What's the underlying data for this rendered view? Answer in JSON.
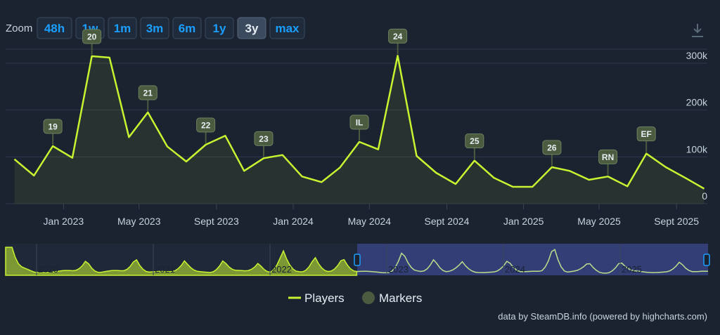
{
  "toolbar": {
    "zoom_label": "Zoom",
    "zoom_buttons": [
      "48h",
      "1w",
      "1m",
      "3m",
      "6m",
      "1y",
      "3y",
      "max"
    ],
    "selected": "3y",
    "download_icon": "download-icon"
  },
  "colors": {
    "background": "#1b2230",
    "players_line": "#c6f431",
    "marker_fill": "#4a5b3f",
    "button_text": "#1a9fff",
    "navigator_selection": "#3b468c"
  },
  "chart_data": {
    "type": "line",
    "series": [
      {
        "name": "Players",
        "x": [
          "2022-10-15",
          "2022-11-15",
          "2022-12-15",
          "2023-01-15",
          "2023-02-15",
          "2023-03-15",
          "2023-04-15",
          "2023-05-15",
          "2023-06-15",
          "2023-07-15",
          "2023-08-15",
          "2023-09-15",
          "2023-10-15",
          "2023-11-15",
          "2023-12-15",
          "2024-01-15",
          "2024-02-15",
          "2024-03-15",
          "2024-04-15",
          "2024-05-15",
          "2024-06-15",
          "2024-07-15",
          "2024-08-15",
          "2024-09-15",
          "2024-10-15",
          "2024-11-15",
          "2024-12-15",
          "2025-01-15",
          "2025-02-15",
          "2025-03-15",
          "2025-04-15",
          "2025-05-15",
          "2025-06-15",
          "2025-07-15",
          "2025-08-15",
          "2025-09-15",
          "2025-10-15"
        ],
        "values": [
          95000,
          60000,
          123000,
          98000,
          315000,
          312000,
          142000,
          195000,
          122000,
          90000,
          126000,
          145000,
          70000,
          97000,
          104000,
          58000,
          46000,
          77000,
          132000,
          116000,
          316000,
          102000,
          66000,
          42000,
          92000,
          55000,
          36000,
          36000,
          78000,
          70000,
          51000,
          58000,
          37000,
          107000,
          78000,
          55000,
          32000
        ]
      },
      {
        "name": "Markers",
        "points": [
          {
            "label": "19",
            "x": "2022-12-15"
          },
          {
            "label": "20",
            "x": "2023-02-15"
          },
          {
            "label": "21",
            "x": "2023-05-15"
          },
          {
            "label": "22",
            "x": "2023-08-15"
          },
          {
            "label": "23",
            "x": "2023-11-15"
          },
          {
            "label": "IL",
            "x": "2024-04-15"
          },
          {
            "label": "24",
            "x": "2024-06-15"
          },
          {
            "label": "25",
            "x": "2024-10-15"
          },
          {
            "label": "26",
            "x": "2025-02-15"
          },
          {
            "label": "RN",
            "x": "2025-05-15"
          },
          {
            "label": "EF",
            "x": "2025-07-15"
          }
        ]
      }
    ],
    "x_ticks": [
      {
        "label": "Jan 2023",
        "x": "2023-01-01"
      },
      {
        "label": "May 2023",
        "x": "2023-05-01"
      },
      {
        "label": "Sept 2023",
        "x": "2023-09-01"
      },
      {
        "label": "Jan 2024",
        "x": "2024-01-01"
      },
      {
        "label": "May 2024",
        "x": "2024-05-01"
      },
      {
        "label": "Sept 2024",
        "x": "2024-09-01"
      },
      {
        "label": "Jan 2025",
        "x": "2025-01-01"
      },
      {
        "label": "May 2025",
        "x": "2025-05-01"
      },
      {
        "label": "Sept 2025",
        "x": "2025-09-01"
      }
    ],
    "xlim": [
      "2022-10-01",
      "2025-10-20"
    ],
    "y_ticks": [
      {
        "label": "0",
        "value": 0
      },
      {
        "label": "100k",
        "value": 100000
      },
      {
        "label": "200k",
        "value": 200000
      },
      {
        "label": "300k",
        "value": 300000
      }
    ],
    "ylim": [
      0,
      330000
    ],
    "grid": "horizontal",
    "legend": {
      "placement": "bottom-center",
      "items": [
        "Players",
        "Markers"
      ]
    },
    "navigator": {
      "year_labels": [
        "2020",
        "2021",
        "2022",
        "2023",
        "2024",
        "2025"
      ],
      "selected_range": [
        "2022-10-01",
        "2025-10-20"
      ]
    },
    "credits": "data by SteamDB.info (powered by highcharts.com)"
  }
}
